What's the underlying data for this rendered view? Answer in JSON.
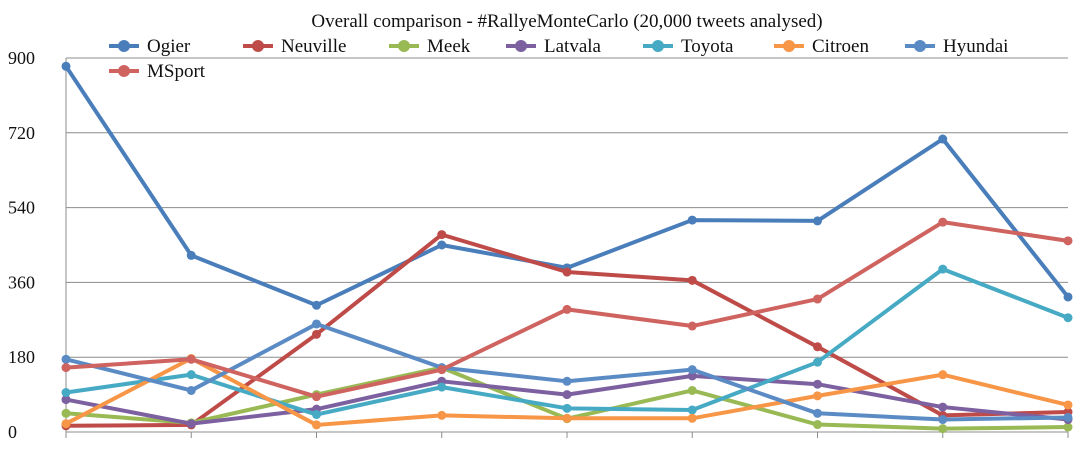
{
  "chart_data": {
    "type": "line",
    "title": "Overall comparison - #RallyeMonteCarlo (20,000 tweets analysed)",
    "xlabel": "",
    "ylabel": "",
    "ylim": [
      0,
      900
    ],
    "yticks": [
      0,
      180,
      360,
      540,
      720,
      900
    ],
    "grid": true,
    "legend_position": "top",
    "x": [
      1,
      2,
      3,
      4,
      5,
      6,
      7,
      8,
      9
    ],
    "series": [
      {
        "name": "Ogier",
        "color": "#4a7ebb",
        "values": [
          880,
          425,
          305,
          450,
          395,
          510,
          508,
          705,
          325
        ]
      },
      {
        "name": "Neuville",
        "color": "#be4b48",
        "values": [
          15,
          17,
          235,
          475,
          385,
          365,
          205,
          40,
          48
        ]
      },
      {
        "name": "Meek",
        "color": "#98b954",
        "values": [
          45,
          22,
          90,
          155,
          32,
          100,
          18,
          8,
          12
        ]
      },
      {
        "name": "Latvala",
        "color": "#7d60a0",
        "values": [
          78,
          20,
          55,
          122,
          90,
          135,
          115,
          60,
          30
        ]
      },
      {
        "name": "Toyota",
        "color": "#46aac5",
        "values": [
          95,
          138,
          42,
          108,
          57,
          53,
          168,
          392,
          275
        ]
      },
      {
        "name": "Citroen",
        "color": "#f79646",
        "values": [
          20,
          177,
          17,
          40,
          33,
          33,
          87,
          138,
          65
        ]
      },
      {
        "name": "Hyundai",
        "color": "#5b8bc4",
        "values": [
          175,
          100,
          260,
          155,
          122,
          150,
          45,
          30,
          35
        ]
      },
      {
        "name": "MSport",
        "color": "#cf6360",
        "values": [
          155,
          175,
          85,
          150,
          295,
          255,
          320,
          505,
          460
        ]
      }
    ]
  }
}
